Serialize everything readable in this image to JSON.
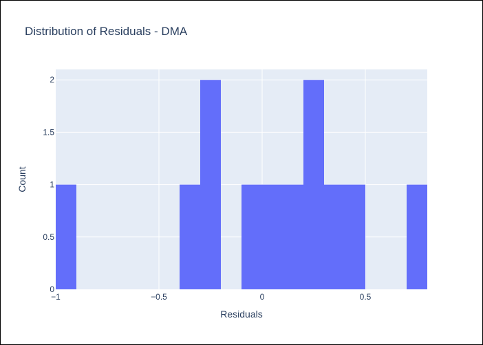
{
  "chart_data": {
    "type": "bar",
    "title": "Distribution of Residuals - DMA",
    "xlabel": "Residuals",
    "ylabel": "Count",
    "bin_width": 0.1,
    "bins": [
      {
        "x0": -1.0,
        "x1": -0.9,
        "count": 1
      },
      {
        "x0": -0.4,
        "x1": -0.3,
        "count": 1
      },
      {
        "x0": -0.3,
        "x1": -0.2,
        "count": 2
      },
      {
        "x0": -0.1,
        "x1": 0.0,
        "count": 1
      },
      {
        "x0": 0.0,
        "x1": 0.1,
        "count": 1
      },
      {
        "x0": 0.1,
        "x1": 0.2,
        "count": 1
      },
      {
        "x0": 0.2,
        "x1": 0.3,
        "count": 2
      },
      {
        "x0": 0.3,
        "x1": 0.4,
        "count": 1
      },
      {
        "x0": 0.4,
        "x1": 0.5,
        "count": 1
      },
      {
        "x0": 0.7,
        "x1": 0.8,
        "count": 1
      }
    ],
    "xlim": [
      -1.0,
      0.8
    ],
    "ylim": [
      0,
      2.1
    ],
    "xticks": [
      {
        "value": -1.0,
        "label": "−1"
      },
      {
        "value": -0.5,
        "label": "−0.5"
      },
      {
        "value": 0.0,
        "label": "0"
      },
      {
        "value": 0.5,
        "label": "0.5"
      }
    ],
    "yticks": [
      {
        "value": 0,
        "label": "0"
      },
      {
        "value": 0.5,
        "label": "0.5"
      },
      {
        "value": 1,
        "label": "1"
      },
      {
        "value": 1.5,
        "label": "1.5"
      },
      {
        "value": 2,
        "label": "2"
      }
    ],
    "grid": true,
    "colors": {
      "bar": "#636efa",
      "plot_bg": "#e5ecf6",
      "grid": "#ffffff",
      "text": "#2a3f5f"
    }
  }
}
